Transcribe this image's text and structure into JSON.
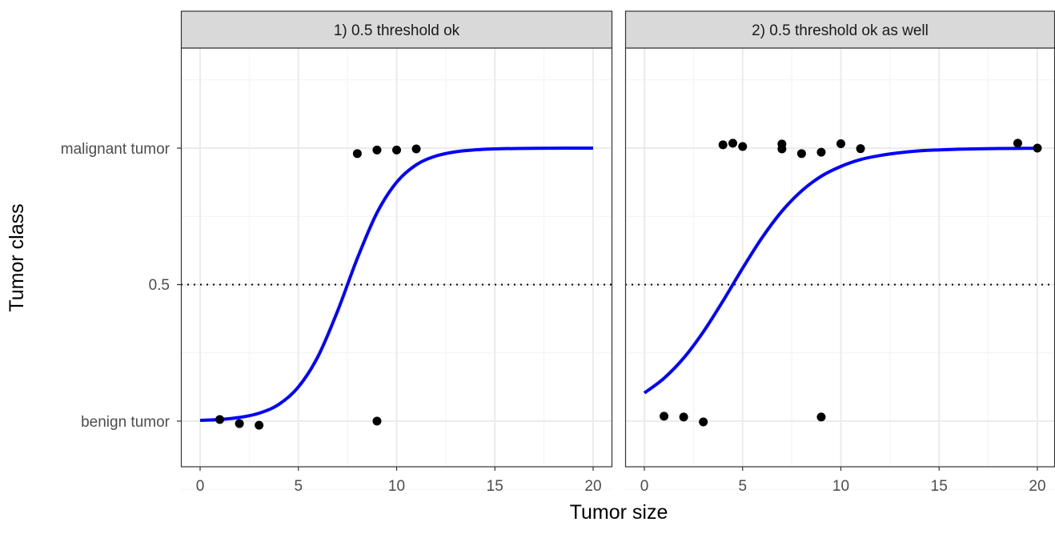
{
  "chart_data": {
    "type": "scatter",
    "xlabel": "Tumor size",
    "ylabel": "Tumor class",
    "xlim": [
      -1,
      21
    ],
    "ylim": [
      -0.167,
      1.367
    ],
    "x_ticks": [
      0,
      5,
      10,
      15,
      20
    ],
    "x_tick_labels": [
      "0",
      "5",
      "10",
      "15",
      "20"
    ],
    "y_ticks": [
      0,
      0.5,
      1
    ],
    "y_tick_labels": [
      "benign tumor",
      "0.5",
      "malignant tumor"
    ],
    "threshold": 0.5,
    "grid": true,
    "colors": {
      "points": "#000000",
      "curve": "#0000ff",
      "threshold": "#000000",
      "strip": "#d9d9d9"
    },
    "panels": [
      {
        "title": "1) 0.5 threshold ok",
        "points": {
          "x": [
            1,
            2,
            3,
            8,
            9,
            10,
            11,
            9
          ],
          "y": [
            0.006,
            -0.009,
            -0.015,
            0.98,
            0.993,
            0.993,
            0.997,
            0.0
          ]
        },
        "curve": {
          "x": [
            0,
            1,
            2,
            3,
            4,
            5,
            6,
            7,
            8,
            9,
            10,
            11,
            12,
            13,
            14,
            15,
            16,
            17,
            18,
            19,
            20
          ],
          "y": [
            0.003,
            0.006,
            0.0135,
            0.029,
            0.061,
            0.125,
            0.237,
            0.404,
            0.596,
            0.763,
            0.875,
            0.939,
            0.971,
            0.9865,
            0.9937,
            0.9971,
            0.9987,
            0.9994,
            0.9997,
            0.9999,
            0.9999
          ]
        }
      },
      {
        "title": "2) 0.5 threshold ok as well",
        "points": {
          "x": [
            1,
            2,
            3,
            9,
            4,
            4.5,
            5,
            7,
            7,
            8,
            9,
            10,
            11,
            19,
            20
          ],
          "y": [
            0.018,
            0.015,
            -0.003,
            0.015,
            1.012,
            1.018,
            1.006,
            1.015,
            0.997,
            0.98,
            0.985,
            1.016,
            0.998,
            1.018,
            1.0
          ]
        },
        "curve": {
          "x": [
            0,
            1,
            2,
            3,
            4,
            5,
            6,
            7,
            8,
            9,
            10,
            11,
            12,
            13,
            14,
            15,
            16,
            17,
            18,
            19,
            20
          ],
          "y": [
            0.103,
            0.157,
            0.231,
            0.327,
            0.44,
            0.56,
            0.673,
            0.769,
            0.843,
            0.897,
            0.933,
            0.958,
            0.973,
            0.983,
            0.99,
            0.9935,
            0.996,
            0.9975,
            0.9985,
            0.999,
            0.9994
          ]
        }
      }
    ]
  }
}
